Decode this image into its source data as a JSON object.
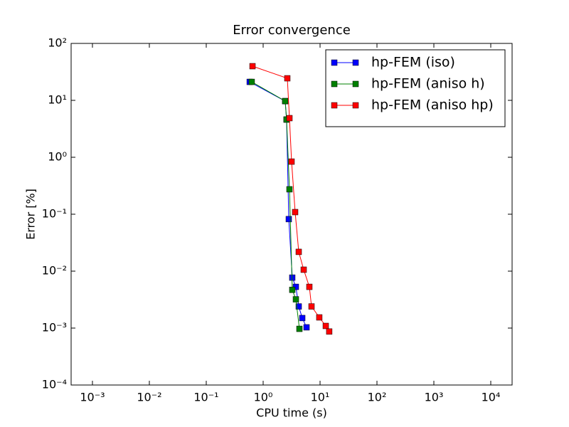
{
  "chart_data": {
    "type": "line",
    "title": "Error convergence",
    "xlabel": "CPU time (s)",
    "ylabel": "Error [%]",
    "xscale": "log",
    "yscale": "log",
    "legend": "upper right",
    "grid": false,
    "xlim": [
      0.000422,
      23714
    ],
    "ylim": [
      0.0001,
      100
    ],
    "xticks": [
      {
        "value": 0.001,
        "label": "10⁻³"
      },
      {
        "value": 0.01,
        "label": "10⁻²"
      },
      {
        "value": 0.1,
        "label": "10⁻¹"
      },
      {
        "value": 1,
        "label": "10⁰"
      },
      {
        "value": 10,
        "label": "10¹"
      },
      {
        "value": 100,
        "label": "10²"
      },
      {
        "value": 1000,
        "label": "10³"
      },
      {
        "value": 10000,
        "label": "10⁴"
      }
    ],
    "yticks": [
      {
        "value": 0.0001,
        "label": "10⁻⁴"
      },
      {
        "value": 0.001,
        "label": "10⁻³"
      },
      {
        "value": 0.01,
        "label": "10⁻²"
      },
      {
        "value": 0.1,
        "label": "10⁻¹"
      },
      {
        "value": 1,
        "label": "10⁰"
      },
      {
        "value": 10,
        "label": "10¹"
      },
      {
        "value": 100,
        "label": "10²"
      }
    ],
    "series": [
      {
        "name": "hp-FEM (iso)",
        "color": "#0000ff",
        "x": [
          0.58,
          2.44,
          2.58,
          2.82,
          3.25,
          3.76,
          4.22,
          4.87,
          5.79
        ],
        "values": [
          21.1,
          9.7,
          4.6,
          0.082,
          0.0077,
          0.0053,
          0.0024,
          0.0015,
          0.00103
        ]
      },
      {
        "name": "hp-FEM (aniso h)",
        "color": "#008000",
        "x": [
          0.63,
          2.44,
          2.58,
          2.9,
          3.25,
          3.76,
          4.34
        ],
        "values": [
          21.1,
          9.7,
          4.6,
          0.274,
          0.0047,
          0.0032,
          0.00097
        ]
      },
      {
        "name": "hp-FEM (aniso hp)",
        "color": "#ff0000",
        "x": [
          0.65,
          2.66,
          2.9,
          3.16,
          3.65,
          4.22,
          5.16,
          6.49,
          7.08,
          9.7,
          12.6,
          14.5
        ],
        "values": [
          39.8,
          24.4,
          4.87,
          0.84,
          0.109,
          0.0218,
          0.0106,
          0.0053,
          0.0024,
          0.00154,
          0.00109,
          0.00087
        ]
      }
    ]
  }
}
